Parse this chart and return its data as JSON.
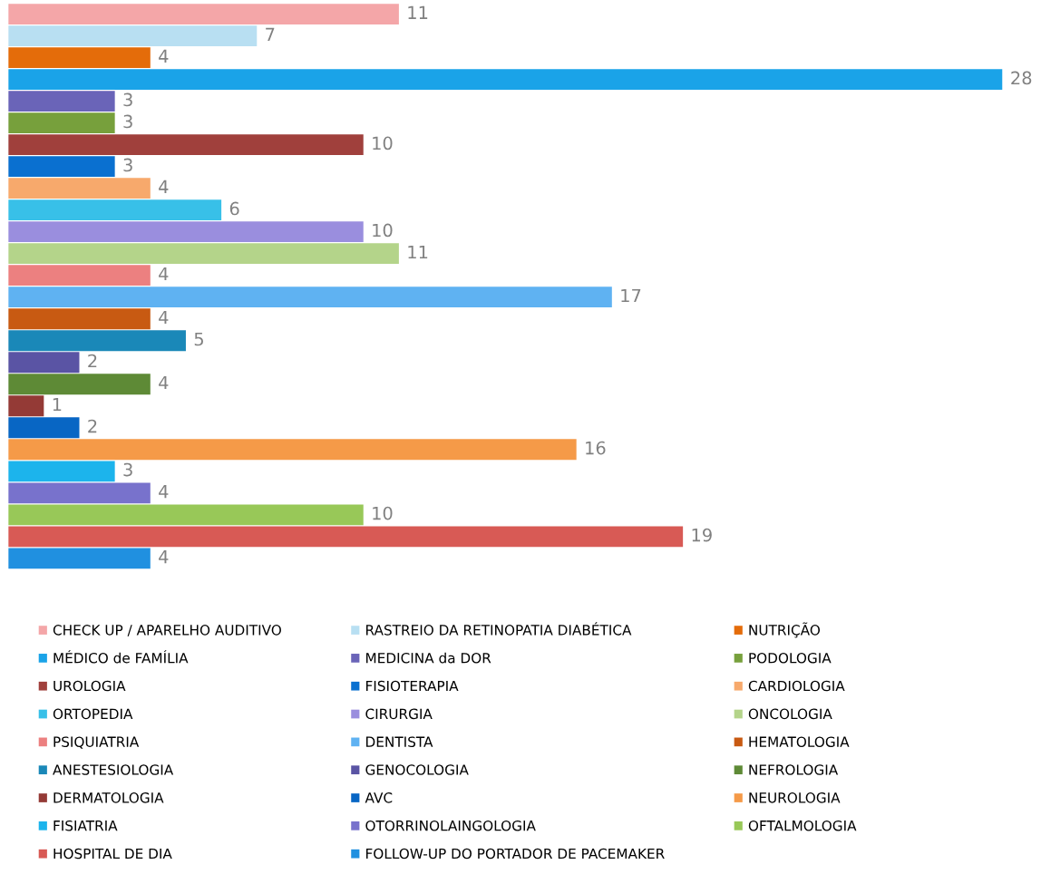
{
  "chart_data": {
    "type": "bar",
    "orientation": "horizontal",
    "categories": [
      null
    ],
    "data_labels": true,
    "legend": "bottom",
    "series": [
      {
        "name": "CHECK UP / APARELHO AUDITIVO",
        "color": "#f4a6a8",
        "values": [
          11
        ]
      },
      {
        "name": "RASTREIO DA RETINOPATIA DIABÉTICA",
        "color": "#b8dff2",
        "values": [
          7
        ]
      },
      {
        "name": "NUTRIÇÃO",
        "color": "#e46c0a",
        "values": [
          4
        ]
      },
      {
        "name": "MÉDICO de FAMÍLIA",
        "color": "#1aa3e8",
        "values": [
          28
        ]
      },
      {
        "name": "MEDICINA da DOR",
        "color": "#6a64b8",
        "values": [
          3
        ]
      },
      {
        "name": "PODOLOGIA",
        "color": "#77a03c",
        "values": [
          3
        ]
      },
      {
        "name": "UROLOGIA",
        "color": "#a0403c",
        "values": [
          10
        ]
      },
      {
        "name": "FISIOTERAPIA",
        "color": "#0a70d0",
        "values": [
          3
        ]
      },
      {
        "name": "CARDIOLOGIA",
        "color": "#f7a96c",
        "values": [
          4
        ]
      },
      {
        "name": "ORTOPEDIA",
        "color": "#38c0e8",
        "values": [
          6
        ]
      },
      {
        "name": "CIRURGIA",
        "color": "#9a8ede",
        "values": [
          10
        ]
      },
      {
        "name": "ONCOLOGIA",
        "color": "#b4d48a",
        "values": [
          11
        ]
      },
      {
        "name": "PSIQUIATRIA",
        "color": "#ec8080",
        "values": [
          4
        ]
      },
      {
        "name": "DENTISTA",
        "color": "#5fb2f2",
        "values": [
          17
        ]
      },
      {
        "name": "HEMATOLOGIA",
        "color": "#c85a12",
        "values": [
          4
        ]
      },
      {
        "name": "ANESTESIOLOGIA",
        "color": "#1a88b8",
        "values": [
          5
        ]
      },
      {
        "name": "GENOCOLOGIA",
        "color": "#5a54a4",
        "values": [
          2
        ]
      },
      {
        "name": "NEFROLOGIA",
        "color": "#5e8a36",
        "values": [
          4
        ]
      },
      {
        "name": "DERMATOLOGIA",
        "color": "#943a36",
        "values": [
          1
        ]
      },
      {
        "name": "AVC",
        "color": "#0866c4",
        "values": [
          2
        ]
      },
      {
        "name": "NEUROLOGIA",
        "color": "#f59a48",
        "values": [
          16
        ]
      },
      {
        "name": "FISIATRIA",
        "color": "#1cb4ec",
        "values": [
          3
        ]
      },
      {
        "name": "OTORRINOLAINGOLOGIA",
        "color": "#7872cc",
        "values": [
          4
        ]
      },
      {
        "name": "OFTALMOLOGIA",
        "color": "#98c858",
        "values": [
          10
        ]
      },
      {
        "name": "HOSPITAL DE DIA",
        "color": "#d85a55",
        "values": [
          19
        ]
      },
      {
        "name": "FOLLOW-UP DO PORTADOR DE PACEMAKER",
        "color": "#2090e0",
        "values": [
          4
        ]
      }
    ]
  }
}
